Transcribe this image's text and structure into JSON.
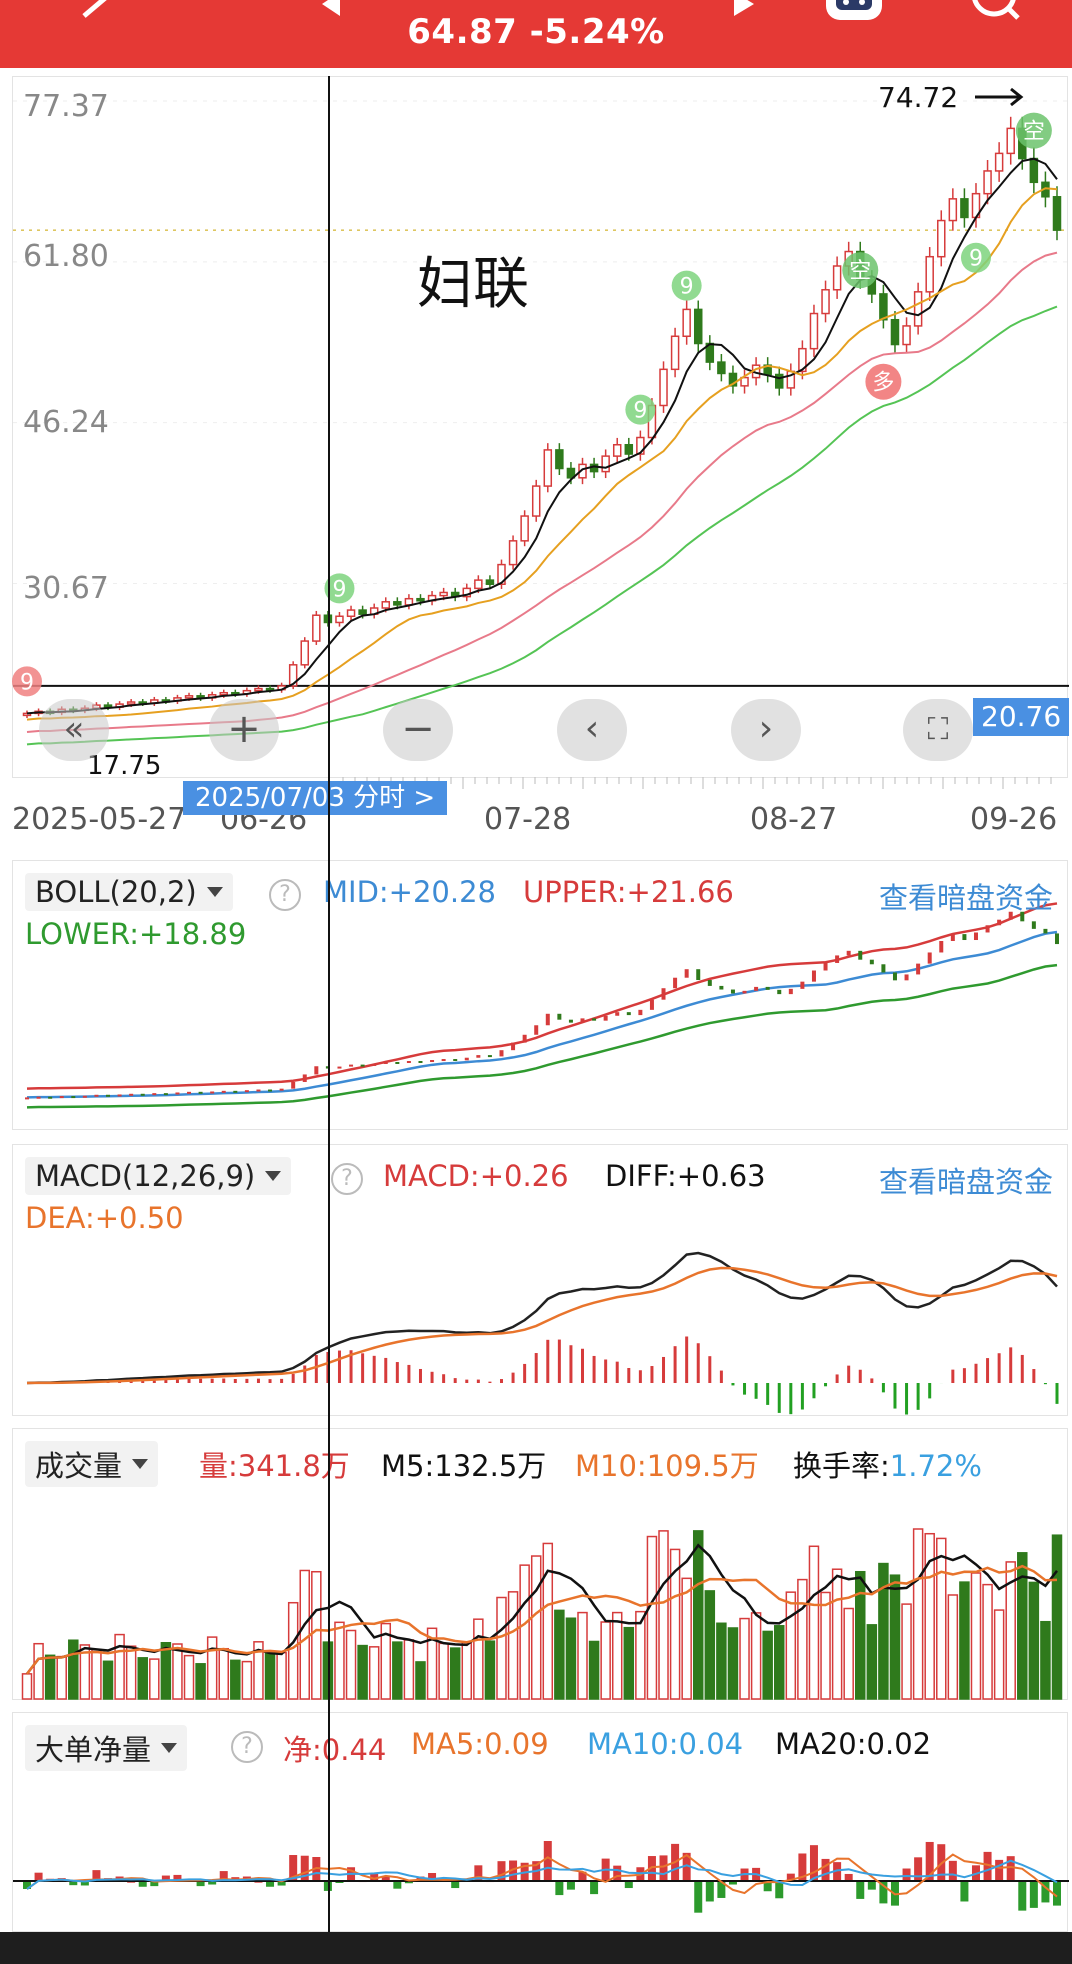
{
  "header": {
    "price_change": "64.87 -5.24%"
  },
  "main_chart": {
    "stock_label": "妇联",
    "y_ticks": [
      "77.37",
      "61.80",
      "46.24",
      "30.67"
    ],
    "x_ticks": [
      "2025-05-27",
      "06-26",
      "07-28",
      "08-27",
      "09-26"
    ],
    "high_label": "74.72",
    "low_label": "17.75",
    "crosshair_price": "20.76",
    "crosshair_date": "2025/07/03  分时 >",
    "buy_badge": "多",
    "sell_badge": "空",
    "td_nine": "9"
  },
  "boll": {
    "name": "BOLL(20,2)",
    "mid": "MID:+20.28",
    "upper": "UPPER:+21.66",
    "lower": "LOWER:+18.89",
    "link": "查看暗盘资金"
  },
  "macd": {
    "name": "MACD(12,26,9)",
    "macd": "MACD:+0.26",
    "diff": "DIFF:+0.63",
    "dea": "DEA:+0.50",
    "link": "查看暗盘资金"
  },
  "volume": {
    "name": "成交量",
    "vol_prefix": "量:",
    "vol": "341.8万",
    "m5": "M5:132.5万",
    "m10": "M10:109.5万",
    "turnover_prefix": "换手率:",
    "turnover": "1.72%"
  },
  "bigorder": {
    "name": "大单净量",
    "net": "净:0.44",
    "ma5": "MA5:0.09",
    "ma10": "MA10:0.04",
    "ma20": "MA20:0.02"
  },
  "colors": {
    "up": "#d63b3b",
    "down": "#2f7a1c",
    "ma5": "#111111",
    "ma10": "#e6a020",
    "ma20": "#e87a8a",
    "ma60": "#55c455",
    "mid": "#3d8bd4",
    "accent": "#e53935"
  },
  "chart_data": {
    "type": "candlestick",
    "x_range": [
      "2025-05-27",
      "09-26"
    ],
    "ylim": [
      17.75,
      77.37
    ],
    "y_ticks": [
      77.37,
      61.8,
      46.24,
      30.67
    ],
    "close": [
      18.1,
      18.3,
      18.2,
      18.5,
      18.4,
      18.6,
      18.9,
      18.7,
      19.0,
      19.2,
      19.1,
      19.4,
      19.3,
      19.6,
      19.8,
      19.6,
      19.9,
      20.1,
      20.0,
      20.3,
      20.5,
      20.4,
      20.76,
      22.8,
      25.1,
      27.6,
      26.9,
      27.5,
      28.1,
      27.7,
      28.3,
      28.9,
      28.6,
      29.2,
      29.0,
      29.5,
      29.8,
      29.4,
      30.2,
      31.0,
      30.6,
      32.5,
      34.8,
      37.2,
      40.1,
      43.6,
      41.8,
      40.9,
      42.2,
      41.5,
      43.0,
      44.1,
      43.2,
      44.8,
      47.9,
      51.4,
      54.6,
      57.2,
      53.9,
      52.1,
      51.0,
      49.8,
      50.6,
      51.8,
      50.9,
      49.6,
      51.2,
      53.4,
      56.8,
      59.1,
      61.4,
      62.8,
      60.1,
      58.7,
      56.2,
      53.8,
      55.6,
      58.9,
      62.3,
      65.8,
      67.9,
      66.1,
      68.4,
      70.6,
      72.3,
      74.72,
      71.8,
      69.5,
      68.1,
      64.87
    ]
  }
}
